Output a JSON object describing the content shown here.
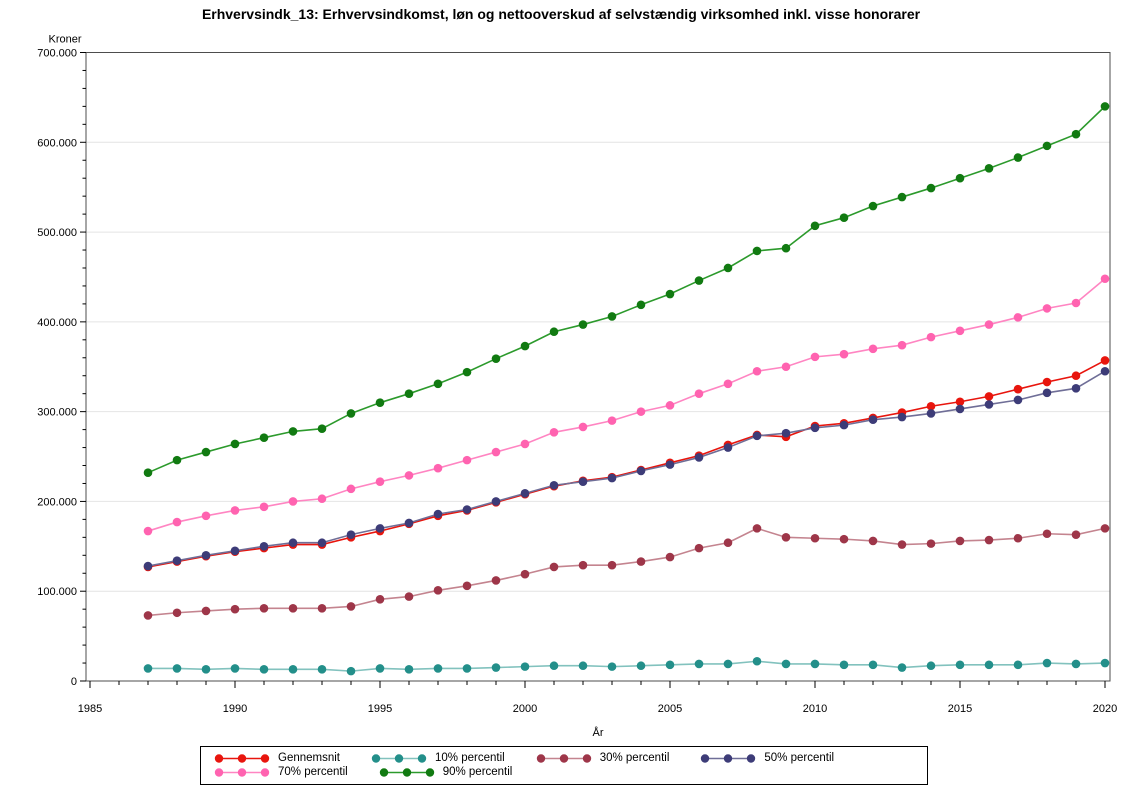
{
  "page": {
    "title": "Erhvervsindk_13: Erhvervsindkomst, løn og nettooverskud af selvstændig virksomhed inkl. visse honorarer"
  },
  "chart_data": {
    "type": "line",
    "title": "Erhvervsindk_13: Erhvervsindkomst, løn og nettooverskud af selvstændig virksomhed inkl. visse honorarer",
    "ylabel": "Kroner",
    "xlabel": "År",
    "grid": "horizontal-only",
    "legend_position": "bottom",
    "xlim": [
      1985,
      2020
    ],
    "ylim": [
      0,
      700000
    ],
    "ytick_step": 100000,
    "ytick_minor_step": 20000,
    "xtick_major_step": 5,
    "xtick_minor_step": 1,
    "ytick_labels": [
      "0",
      "100.000",
      "200.000",
      "300.000",
      "400.000",
      "500.000",
      "600.000",
      "700.000"
    ],
    "xtick_labels": [
      "1985",
      "1990",
      "1995",
      "2000",
      "2005",
      "2010",
      "2015",
      "2020"
    ],
    "x": [
      1987,
      1988,
      1989,
      1990,
      1991,
      1992,
      1993,
      1994,
      1995,
      1996,
      1997,
      1998,
      1999,
      2000,
      2001,
      2002,
      2003,
      2004,
      2005,
      2006,
      2007,
      2008,
      2009,
      2010,
      2011,
      2012,
      2013,
      2014,
      2015,
      2016,
      2017,
      2018,
      2019,
      2020
    ],
    "series": [
      {
        "name": "Gennemsnit",
        "dot_color": "#e8150d",
        "line_color": "#e8150d",
        "values": [
          127000,
          133000,
          139000,
          144000,
          148000,
          152000,
          152000,
          160000,
          167000,
          175000,
          184000,
          190000,
          199000,
          208000,
          217000,
          223000,
          227000,
          235000,
          243000,
          251000,
          263000,
          274000,
          272000,
          284000,
          287000,
          293000,
          299000,
          306000,
          311000,
          317000,
          325000,
          333000,
          340000,
          357000
        ]
      },
      {
        "name": "10% percentil",
        "dot_color": "#238f8a",
        "line_color": "#82c2be",
        "values": [
          14000,
          14000,
          13000,
          14000,
          13000,
          13000,
          13000,
          11000,
          14000,
          13000,
          14000,
          14000,
          15000,
          16000,
          17000,
          17000,
          16000,
          17000,
          18000,
          19000,
          19000,
          22000,
          19000,
          19000,
          18000,
          18000,
          15000,
          17000,
          18000,
          18000,
          18000,
          20000,
          19000,
          20000
        ]
      },
      {
        "name": "30% percentil",
        "dot_color": "#9e3649",
        "line_color": "#c4848f",
        "values": [
          73000,
          76000,
          78000,
          80000,
          81000,
          81000,
          81000,
          83000,
          91000,
          94000,
          101000,
          106000,
          112000,
          119000,
          127000,
          129000,
          129000,
          133000,
          138000,
          148000,
          154000,
          170000,
          160000,
          159000,
          158000,
          156000,
          152000,
          153000,
          156000,
          157000,
          159000,
          164000,
          163000,
          170000
        ]
      },
      {
        "name": "50% percentil",
        "dot_color": "#3d3c78",
        "line_color": "#6f6e97",
        "values": [
          128000,
          134000,
          140000,
          145000,
          150000,
          154000,
          154000,
          163000,
          170000,
          176000,
          186000,
          191000,
          200000,
          209000,
          218000,
          222000,
          226000,
          234000,
          241000,
          249000,
          260000,
          273000,
          276000,
          282000,
          285000,
          291000,
          294000,
          298000,
          303000,
          308000,
          313000,
          321000,
          326000,
          345000
        ]
      },
      {
        "name": "70% percentil",
        "dot_color": "#ff63b0",
        "line_color": "#ff85c2",
        "values": [
          167000,
          177000,
          184000,
          190000,
          194000,
          200000,
          203000,
          214000,
          222000,
          229000,
          237000,
          246000,
          255000,
          264000,
          277000,
          283000,
          290000,
          300000,
          307000,
          320000,
          331000,
          345000,
          350000,
          361000,
          364000,
          370000,
          374000,
          383000,
          390000,
          397000,
          405000,
          415000,
          421000,
          448000
        ]
      },
      {
        "name": "90% percentil",
        "dot_color": "#117a11",
        "line_color": "#2c9a2c",
        "values": [
          232000,
          246000,
          255000,
          264000,
          271000,
          278000,
          281000,
          298000,
          310000,
          320000,
          331000,
          344000,
          359000,
          373000,
          389000,
          397000,
          406000,
          419000,
          431000,
          446000,
          460000,
          479000,
          482000,
          507000,
          516000,
          529000,
          539000,
          549000,
          560000,
          571000,
          583000,
          596000,
          609000,
          640000
        ]
      }
    ]
  }
}
